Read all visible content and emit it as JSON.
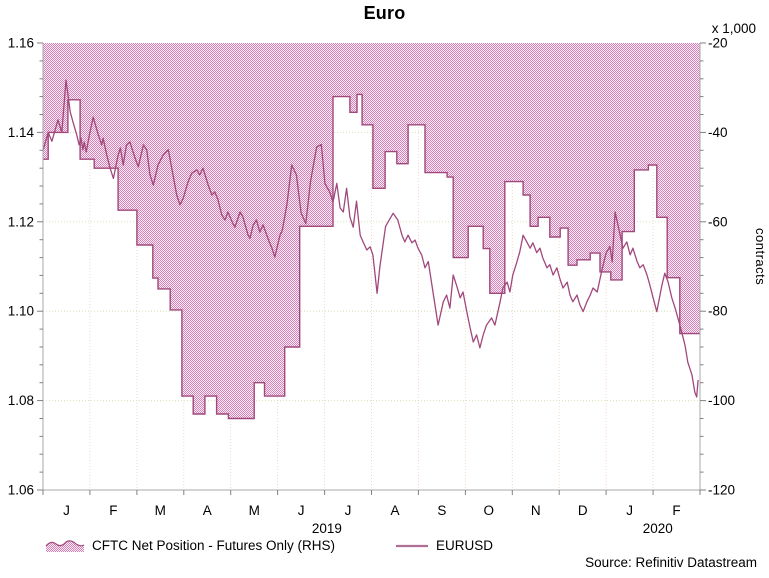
{
  "title": "Euro",
  "right_axis_unit_label": "x 1,000",
  "right_axis_title": "contracts",
  "source": "Source: Refinitiv Datastream",
  "legend": [
    {
      "label": "CFTC Net Position - Futures Only (RHS)",
      "type": "area-swatch"
    },
    {
      "label": "EURUSD",
      "type": "line-swatch"
    }
  ],
  "colors": {
    "series_line": "#a0487c",
    "area_outline": "#a0487c",
    "area_fill_dark": "#d881b7",
    "area_fill_light": "#fbeef7",
    "legend_line": "#b06f95",
    "axis_line": "#a8a8a8",
    "tick": "#808080",
    "grid_horizontal": "#d9e2b8",
    "grid_vertical": "#f2d8c6",
    "text": "#000000"
  },
  "chart_data": {
    "type": "line",
    "title": "Euro",
    "x_axis": {
      "months_total": 14,
      "month_labels": [
        "J",
        "F",
        "M",
        "A",
        "M",
        "J",
        "J",
        "A",
        "S",
        "O",
        "N",
        "D",
        "J",
        "F"
      ],
      "year_labels": [
        {
          "label": "2019",
          "month_center": 6.05
        },
        {
          "label": "2020",
          "month_center": 13.1
        }
      ]
    },
    "left_axis": {
      "min": 1.06,
      "max": 1.16,
      "tick_labels": [
        "1.16",
        "1.14",
        "1.12",
        "1.10",
        "1.08",
        "1.06"
      ],
      "tick_values": [
        1.16,
        1.14,
        1.12,
        1.1,
        1.08,
        1.06
      ],
      "minor_step": 0.004,
      "grid_values": [
        1.14,
        1.12,
        1.1,
        1.08
      ]
    },
    "right_axis": {
      "min": -120,
      "max": -20,
      "tick_labels": [
        "-20",
        "-40",
        "-60",
        "-80",
        "-100",
        "-120"
      ],
      "tick_values": [
        -20,
        -40,
        -60,
        -80,
        -100,
        -120
      ],
      "minor_step": 4,
      "unit": "x 1,000",
      "title": "contracts"
    },
    "series": [
      {
        "name": "CFTC Net Position - Futures Only (RHS)",
        "axis": "right",
        "style": "step-area",
        "points": [
          [
            0.0,
            -46
          ],
          [
            0.11,
            -40
          ],
          [
            0.53,
            -32.7
          ],
          [
            0.79,
            -46
          ],
          [
            1.09,
            -48
          ],
          [
            1.6,
            -57.4
          ],
          [
            2.0,
            -65.2
          ],
          [
            2.34,
            -72.6
          ],
          [
            2.45,
            -75
          ],
          [
            2.71,
            -79.7
          ],
          [
            2.96,
            -99
          ],
          [
            3.2,
            -103
          ],
          [
            3.45,
            -99
          ],
          [
            3.7,
            -103
          ],
          [
            3.95,
            -104
          ],
          [
            4.5,
            -96
          ],
          [
            4.72,
            -99
          ],
          [
            5.15,
            -88
          ],
          [
            5.47,
            -61
          ],
          [
            6.18,
            -32
          ],
          [
            6.54,
            -35.5
          ],
          [
            6.69,
            -31.5
          ],
          [
            6.8,
            -38.3
          ],
          [
            7.03,
            -52.5
          ],
          [
            7.29,
            -44.3
          ],
          [
            7.54,
            -47
          ],
          [
            7.78,
            -38.3
          ],
          [
            8.14,
            -49
          ],
          [
            8.61,
            -50
          ],
          [
            8.74,
            -68
          ],
          [
            9.06,
            -61
          ],
          [
            9.38,
            -66
          ],
          [
            9.52,
            -76
          ],
          [
            9.84,
            -51
          ],
          [
            10.23,
            -54
          ],
          [
            10.38,
            -61
          ],
          [
            10.55,
            -59
          ],
          [
            10.8,
            -63.4
          ],
          [
            11.02,
            -61.4
          ],
          [
            11.19,
            -69.7
          ],
          [
            11.38,
            -68.5
          ],
          [
            11.66,
            -67
          ],
          [
            11.87,
            -71.2
          ],
          [
            12.1,
            -73
          ],
          [
            12.34,
            -62.2
          ],
          [
            12.6,
            -48.4
          ],
          [
            12.9,
            -47.3
          ],
          [
            13.08,
            -59
          ],
          [
            13.3,
            -72.5
          ],
          [
            13.57,
            -85
          ],
          [
            14.0,
            -85
          ]
        ]
      },
      {
        "name": "EURUSD",
        "axis": "left",
        "style": "line",
        "points": [
          [
            0.0,
            1.136
          ],
          [
            0.11,
            1.14
          ],
          [
            0.19,
            1.138
          ],
          [
            0.32,
            1.1428
          ],
          [
            0.4,
            1.14
          ],
          [
            0.49,
            1.1517
          ],
          [
            0.58,
            1.1446
          ],
          [
            0.64,
            1.1423
          ],
          [
            0.72,
            1.1394
          ],
          [
            0.77,
            1.1372
          ],
          [
            0.81,
            1.1387
          ],
          [
            0.85,
            1.1361
          ],
          [
            0.88,
            1.1378
          ],
          [
            0.92,
            1.1356
          ],
          [
            1.0,
            1.14
          ],
          [
            1.07,
            1.1434
          ],
          [
            1.18,
            1.1394
          ],
          [
            1.25,
            1.1372
          ],
          [
            1.28,
            1.1387
          ],
          [
            1.36,
            1.1349
          ],
          [
            1.43,
            1.132
          ],
          [
            1.5,
            1.1297
          ],
          [
            1.6,
            1.1349
          ],
          [
            1.65,
            1.1365
          ],
          [
            1.71,
            1.1327
          ],
          [
            1.78,
            1.1372
          ],
          [
            1.85,
            1.1379
          ],
          [
            1.96,
            1.1343
          ],
          [
            2.03,
            1.1323
          ],
          [
            2.14,
            1.1372
          ],
          [
            2.21,
            1.1361
          ],
          [
            2.28,
            1.1305
          ],
          [
            2.35,
            1.1282
          ],
          [
            2.45,
            1.1327
          ],
          [
            2.56,
            1.1349
          ],
          [
            2.67,
            1.1361
          ],
          [
            2.77,
            1.1305
          ],
          [
            2.85,
            1.126
          ],
          [
            2.92,
            1.1238
          ],
          [
            2.99,
            1.1253
          ],
          [
            3.09,
            1.1289
          ],
          [
            3.17,
            1.1309
          ],
          [
            3.28,
            1.1316
          ],
          [
            3.34,
            1.1305
          ],
          [
            3.41,
            1.132
          ],
          [
            3.52,
            1.1282
          ],
          [
            3.6,
            1.126
          ],
          [
            3.66,
            1.1267
          ],
          [
            3.73,
            1.1249
          ],
          [
            3.81,
            1.1215
          ],
          [
            3.88,
            1.1204
          ],
          [
            3.94,
            1.1222
          ],
          [
            4.03,
            1.12
          ],
          [
            4.09,
            1.1188
          ],
          [
            4.2,
            1.1222
          ],
          [
            4.26,
            1.1211
          ],
          [
            4.37,
            1.117
          ],
          [
            4.41,
            1.1163
          ],
          [
            4.48,
            1.1193
          ],
          [
            4.55,
            1.1204
          ],
          [
            4.62,
            1.1177
          ],
          [
            4.69,
            1.1193
          ],
          [
            4.77,
            1.117
          ],
          [
            4.82,
            1.1155
          ],
          [
            4.88,
            1.1141
          ],
          [
            4.94,
            1.1121
          ],
          [
            5.05,
            1.117
          ],
          [
            5.1,
            1.1181
          ],
          [
            5.2,
            1.124
          ],
          [
            5.3,
            1.1327
          ],
          [
            5.4,
            1.1305
          ],
          [
            5.5,
            1.122
          ],
          [
            5.6,
            1.1196
          ],
          [
            5.7,
            1.129
          ],
          [
            5.83,
            1.1367
          ],
          [
            5.93,
            1.1373
          ],
          [
            6.01,
            1.1285
          ],
          [
            6.11,
            1.1267
          ],
          [
            6.18,
            1.1244
          ],
          [
            6.26,
            1.1286
          ],
          [
            6.33,
            1.1231
          ],
          [
            6.4,
            1.1222
          ],
          [
            6.47,
            1.1275
          ],
          [
            6.54,
            1.1211
          ],
          [
            6.61,
            1.1188
          ],
          [
            6.68,
            1.1246
          ],
          [
            6.76,
            1.117
          ],
          [
            6.82,
            1.1155
          ],
          [
            6.9,
            1.1137
          ],
          [
            6.97,
            1.1144
          ],
          [
            7.03,
            1.1126
          ],
          [
            7.12,
            1.104
          ],
          [
            7.18,
            1.11
          ],
          [
            7.3,
            1.119
          ],
          [
            7.46,
            1.1219
          ],
          [
            7.56,
            1.1204
          ],
          [
            7.65,
            1.117
          ],
          [
            7.71,
            1.1155
          ],
          [
            7.78,
            1.117
          ],
          [
            7.86,
            1.1153
          ],
          [
            7.93,
            1.1159
          ],
          [
            7.99,
            1.1141
          ],
          [
            8.07,
            1.1126
          ],
          [
            8.14,
            1.1097
          ],
          [
            8.21,
            1.1111
          ],
          [
            8.3,
            1.105
          ],
          [
            8.42,
            1.0969
          ],
          [
            8.53,
            1.1021
          ],
          [
            8.6,
            1.1036
          ],
          [
            8.67,
            1.1007
          ],
          [
            8.74,
            1.1081
          ],
          [
            8.81,
            1.1059
          ],
          [
            8.89,
            1.103
          ],
          [
            8.95,
            1.1043
          ],
          [
            9.03,
            1.0999
          ],
          [
            9.1,
            1.0963
          ],
          [
            9.17,
            1.0931
          ],
          [
            9.24,
            1.0947
          ],
          [
            9.31,
            1.0918
          ],
          [
            9.38,
            1.0947
          ],
          [
            9.45,
            1.0969
          ],
          [
            9.56,
            1.0985
          ],
          [
            9.63,
            1.0969
          ],
          [
            9.74,
            1.1021
          ],
          [
            9.8,
            1.1052
          ],
          [
            9.89,
            1.1065
          ],
          [
            9.95,
            1.1043
          ],
          [
            10.01,
            1.1081
          ],
          [
            10.1,
            1.1111
          ],
          [
            10.16,
            1.1133
          ],
          [
            10.23,
            1.117
          ],
          [
            10.31,
            1.1155
          ],
          [
            10.38,
            1.1141
          ],
          [
            10.44,
            1.1153
          ],
          [
            10.52,
            1.1131
          ],
          [
            10.59,
            1.1141
          ],
          [
            10.65,
            1.1119
          ],
          [
            10.74,
            1.1097
          ],
          [
            10.8,
            1.1104
          ],
          [
            10.87,
            1.1081
          ],
          [
            10.95,
            1.1097
          ],
          [
            11.01,
            1.1074
          ],
          [
            11.08,
            1.1052
          ],
          [
            11.17,
            1.1065
          ],
          [
            11.23,
            1.1036
          ],
          [
            11.29,
            1.1021
          ],
          [
            11.38,
            1.1036
          ],
          [
            11.44,
            1.1014
          ],
          [
            11.51,
            1.0999
          ],
          [
            11.59,
            1.1021
          ],
          [
            11.66,
            1.1036
          ],
          [
            11.72,
            1.1052
          ],
          [
            11.81,
            1.1043
          ],
          [
            11.91,
            1.1092
          ],
          [
            12.0,
            1.113
          ],
          [
            12.08,
            1.1145
          ],
          [
            12.13,
            1.111
          ],
          [
            12.19,
            1.1222
          ],
          [
            12.3,
            1.117
          ],
          [
            12.36,
            1.1141
          ],
          [
            12.44,
            1.1155
          ],
          [
            12.51,
            1.1126
          ],
          [
            12.57,
            1.1141
          ],
          [
            12.66,
            1.1111
          ],
          [
            12.72,
            1.1097
          ],
          [
            12.79,
            1.1104
          ],
          [
            12.87,
            1.1081
          ],
          [
            12.93,
            1.1059
          ],
          [
            13.0,
            1.103
          ],
          [
            13.08,
            1.0999
          ],
          [
            13.19,
            1.1059
          ],
          [
            13.25,
            1.1085
          ],
          [
            13.32,
            1.1065
          ],
          [
            13.4,
            1.103
          ],
          [
            13.47,
            1.1007
          ],
          [
            13.53,
            1.0985
          ],
          [
            13.61,
            1.0953
          ],
          [
            13.68,
            1.0924
          ],
          [
            13.74,
            1.0886
          ],
          [
            13.83,
            1.0857
          ],
          [
            13.89,
            1.0819
          ],
          [
            13.93,
            1.0808
          ],
          [
            13.96,
            1.0846
          ]
        ]
      }
    ],
    "grid": true,
    "legend_position": "bottom"
  }
}
